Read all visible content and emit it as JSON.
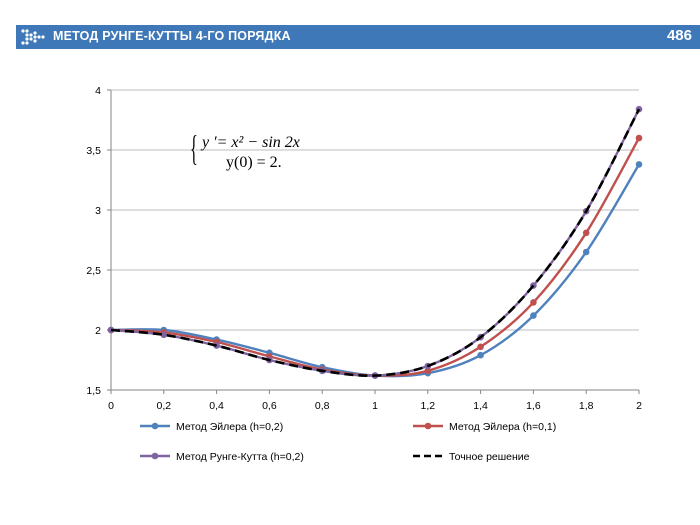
{
  "header": {
    "title": "МЕТОД РУНГЕ-КУТТЫ 4-ГО ПОРЯДКА",
    "page_number": "486",
    "logo_icon": "chevron-arrows-icon",
    "bar_color": "#3e78b8"
  },
  "equation": {
    "line1": "y ′= x² − sin 2x",
    "line2": "y(0) = 2."
  },
  "chart_data": {
    "type": "line",
    "x": [
      0,
      0.2,
      0.4,
      0.6,
      0.8,
      1,
      1.2,
      1.4,
      1.6,
      1.8,
      2
    ],
    "x_tick_labels": [
      "0",
      "0,2",
      "0,4",
      "0,6",
      "0,8",
      "1",
      "1,2",
      "1,4",
      "1,6",
      "1,8",
      "2"
    ],
    "y_ticks": [
      1.5,
      2,
      2.5,
      3,
      3.5,
      4
    ],
    "y_tick_labels": [
      "1,5",
      "2",
      "2,5",
      "3",
      "3,5",
      "4"
    ],
    "xlim": [
      0,
      2
    ],
    "ylim": [
      1.5,
      4
    ],
    "grid": "horizontal",
    "legend_position": "bottom",
    "series": [
      {
        "name": "Метод Эйлера (h=0,2)",
        "color": "#4f81bd",
        "style": "solid",
        "markers": true,
        "values": [
          2.0,
          2.0,
          1.92,
          1.81,
          1.69,
          1.62,
          1.64,
          1.79,
          2.12,
          2.65,
          3.38
        ]
      },
      {
        "name": "Метод Эйлера (h=0,1)",
        "color": "#c0504d",
        "style": "solid",
        "markers": true,
        "values": [
          2.0,
          1.98,
          1.9,
          1.78,
          1.67,
          1.62,
          1.66,
          1.86,
          2.23,
          2.81,
          3.6
        ]
      },
      {
        "name": "Метод Рунге-Кутта (h=0,2)",
        "color": "#8064a2",
        "style": "solid",
        "markers": true,
        "values": [
          2.0,
          1.96,
          1.87,
          1.75,
          1.66,
          1.62,
          1.7,
          1.94,
          2.37,
          2.99,
          3.84
        ]
      },
      {
        "name": "Точное решение",
        "color": "#000000",
        "style": "dashed",
        "markers": false,
        "values": [
          2.0,
          1.96,
          1.87,
          1.75,
          1.66,
          1.62,
          1.7,
          1.94,
          2.37,
          2.99,
          3.84
        ]
      }
    ]
  }
}
